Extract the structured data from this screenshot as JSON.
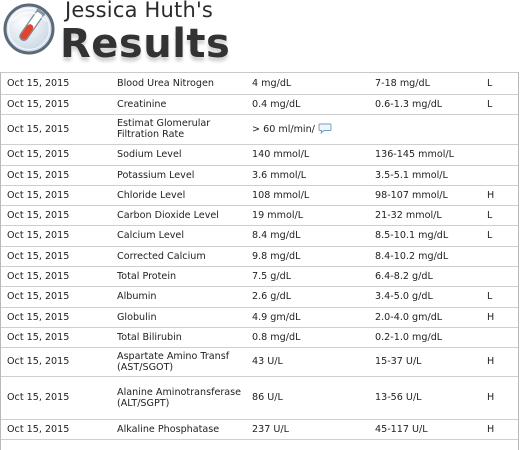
{
  "header": {
    "owner": "Jessica Huth's",
    "title": "Results"
  },
  "colors": {
    "logo_ring": "#5a6a7a",
    "logo_fill": "#dfe9f3",
    "logo_accent": "#e0442c",
    "border": "#cfcfcf"
  },
  "rows": [
    {
      "date": "Oct 15, 2015",
      "test": "Blood Urea Nitrogen",
      "value": "4 mg/dL",
      "range": "7-18 mg/dL",
      "flag": "L"
    },
    {
      "date": "Oct 15, 2015",
      "test": "Creatinine",
      "value": "0.4 mg/dL",
      "range": "0.6-1.3 mg/dL",
      "flag": "L"
    },
    {
      "date": "Oct 15, 2015",
      "test": "Estimat Glomerular Filtration Rate",
      "value": "> 60 ml/min/",
      "range": "",
      "flag": "",
      "has_comment": true
    },
    {
      "date": "Oct 15, 2015",
      "test": "Sodium Level",
      "value": "140 mmol/L",
      "range": "136-145 mmol/L",
      "flag": ""
    },
    {
      "date": "Oct 15, 2015",
      "test": "Potassium Level",
      "value": "3.6 mmol/L",
      "range": "3.5-5.1 mmol/L",
      "flag": ""
    },
    {
      "date": "Oct 15, 2015",
      "test": "Chloride Level",
      "value": "108 mmol/L",
      "range": "98-107 mmol/L",
      "flag": "H"
    },
    {
      "date": "Oct 15, 2015",
      "test": "Carbon Dioxide Level",
      "value": "19 mmol/L",
      "range": "21-32 mmol/L",
      "flag": "L"
    },
    {
      "date": "Oct 15, 2015",
      "test": "Calcium Level",
      "value": "8.4 mg/dL",
      "range": "8.5-10.1 mg/dL",
      "flag": "L"
    },
    {
      "date": "Oct 15, 2015",
      "test": "Corrected Calcium",
      "value": "9.8 mg/dL",
      "range": "8.4-10.2 mg/dL",
      "flag": ""
    },
    {
      "date": "Oct 15, 2015",
      "test": "Total Protein",
      "value": "7.5 g/dL",
      "range": "6.4-8.2 g/dL",
      "flag": ""
    },
    {
      "date": "Oct 15, 2015",
      "test": "Albumin",
      "value": "2.6 g/dL",
      "range": "3.4-5.0 g/dL",
      "flag": "L"
    },
    {
      "date": "Oct 15, 2015",
      "test": "Globulin",
      "value": "4.9 gm/dL",
      "range": "2.0-4.0 gm/dL",
      "flag": "H"
    },
    {
      "date": "Oct 15, 2015",
      "test": "Total Bilirubin",
      "value": "0.8 mg/dL",
      "range": "0.2-1.0 mg/dL",
      "flag": ""
    },
    {
      "date": "Oct 15, 2015",
      "test": "Aspartate Amino Transf (AST/SGOT)",
      "value": "43 U/L",
      "range": "15-37 U/L",
      "flag": "H"
    },
    {
      "date": "Oct 15, 2015",
      "test": "Alanine Aminotransferase (ALT/SGPT)",
      "value": "86 U/L",
      "range": "13-56 U/L",
      "flag": "H"
    },
    {
      "date": "Oct 15, 2015",
      "test": "Alkaline Phosphatase",
      "value": "237 U/L",
      "range": "45-117 U/L",
      "flag": "H"
    }
  ]
}
